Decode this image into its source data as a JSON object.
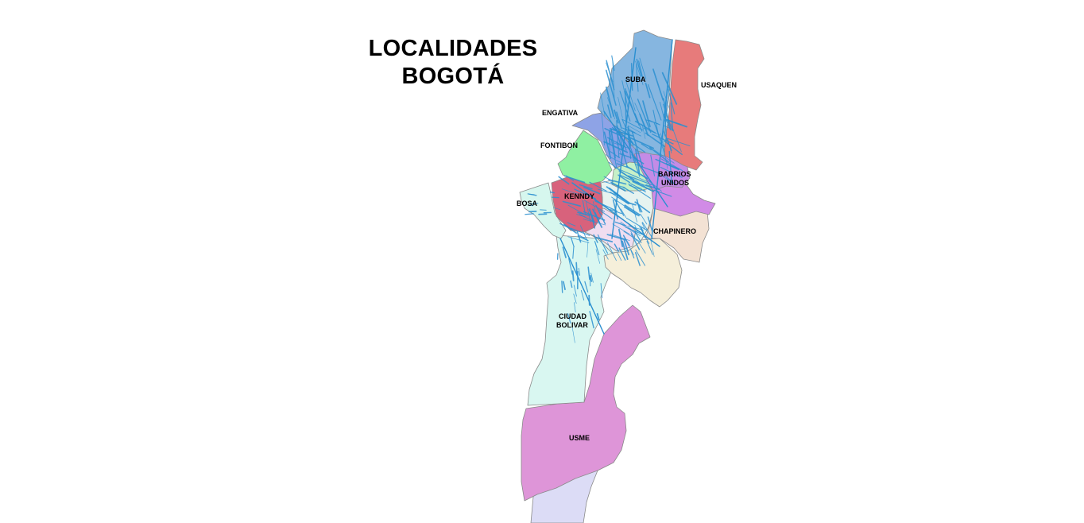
{
  "title": {
    "line1": "LOCALIDADES",
    "line2": "BOGOTÁ"
  },
  "localities": [
    {
      "key": "suba",
      "label": "SUBA",
      "color": "#86b6e0"
    },
    {
      "key": "usaquen",
      "label": "USAQUEN",
      "color": "#e77b7b"
    },
    {
      "key": "engativa",
      "label": "ENGATIVA",
      "color": "#8ea3e6"
    },
    {
      "key": "fontibon",
      "label": "FONTIBON",
      "color": "#8ff0a2"
    },
    {
      "key": "barrios_unidos",
      "label": "BARRIOS",
      "label2": "UNIDOS",
      "color": "#c48be6"
    },
    {
      "key": "kennedy",
      "label": "KENNDY",
      "color": "#d8627c"
    },
    {
      "key": "bosa",
      "label": "BOSA",
      "color": "#d6f7ee"
    },
    {
      "key": "chapinero",
      "label": "CHAPINERO",
      "color": "#f3e2d4"
    },
    {
      "key": "ciudad_bolivar",
      "label": "CIUDAD",
      "label2": "BOLIVAR",
      "color": "#d9f7f1"
    },
    {
      "key": "usme",
      "label": "USME",
      "color": "#de95d8"
    },
    {
      "key": "sumapaz",
      "label": "",
      "color": "#dcdcf6"
    }
  ],
  "extra_colors": {
    "center": "#e6f3f0",
    "teusaquillo": "#c6f0c8",
    "puente_aranda": "#f0ddf0",
    "san_cristobal": "#f5efda",
    "chapinero_purple": "#d18be6",
    "streets": "#2a8fd0"
  }
}
